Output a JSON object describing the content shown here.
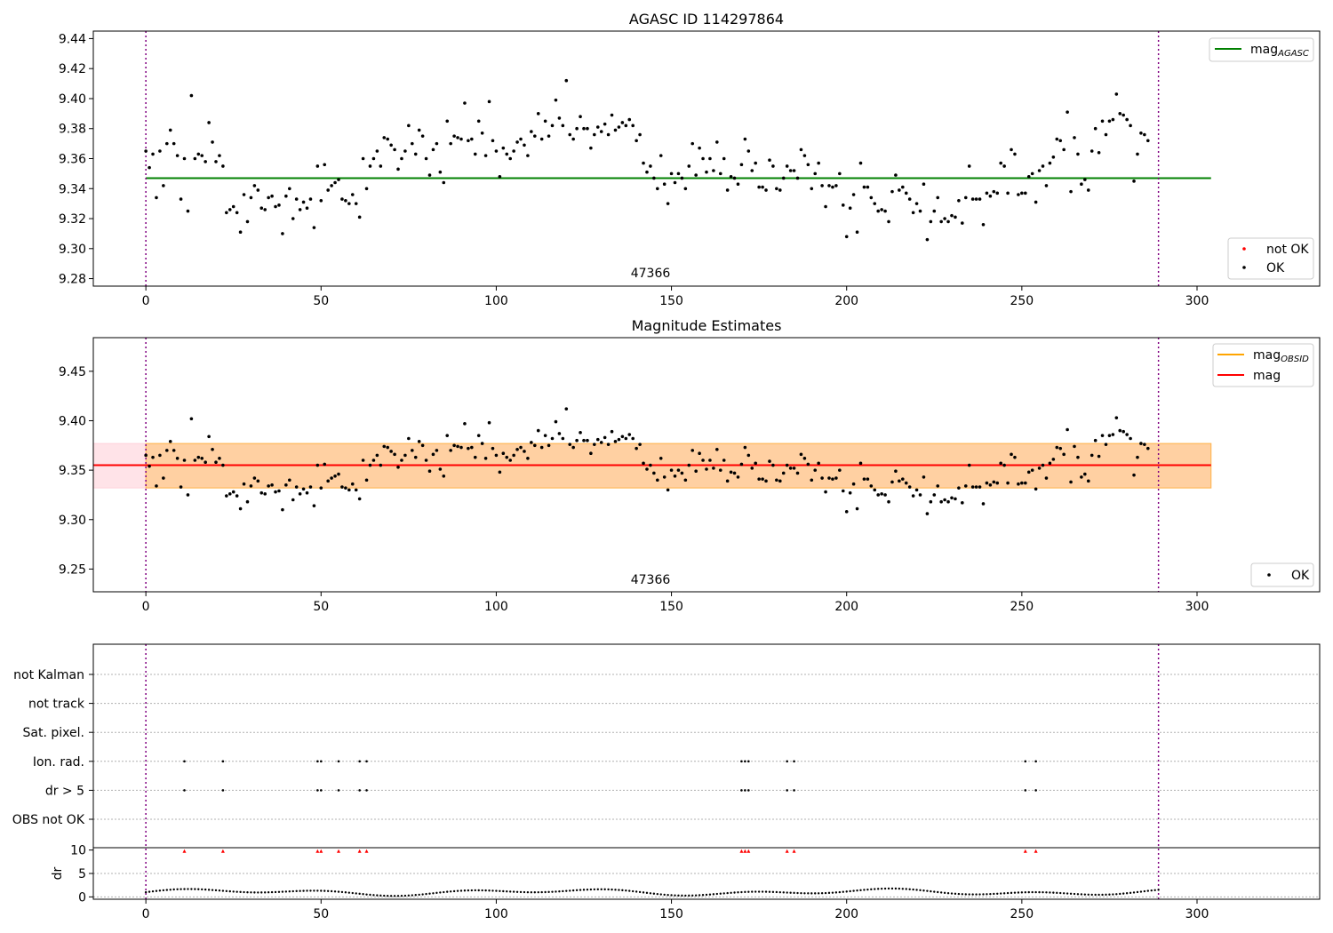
{
  "chart_data": [
    {
      "type": "scatter",
      "title": "AGASC ID 114297864",
      "annotation": "47366",
      "xlim": [
        -15,
        335
      ],
      "ylim": [
        9.275,
        9.445
      ],
      "xticks": [
        0,
        50,
        100,
        150,
        200,
        250,
        300
      ],
      "yticks": [
        9.28,
        9.3,
        9.32,
        9.34,
        9.36,
        9.38,
        9.4,
        9.42,
        9.44
      ],
      "ytick_labels": [
        "9.28",
        "9.30",
        "9.32",
        "9.34",
        "9.36",
        "9.38",
        "9.40",
        "9.42",
        "9.44"
      ],
      "vlines": [
        0,
        289
      ],
      "hline": {
        "name_main": "mag",
        "name_sub": "AGASC",
        "y": 9.347,
        "x0": 0,
        "x1": 304,
        "color": "#008000"
      },
      "series": [
        {
          "name": "not OK",
          "color": "#ff0000",
          "values": []
        },
        {
          "name": "OK",
          "color": "#000000",
          "values": [
            9.365,
            9.354,
            9.363,
            9.334,
            9.365,
            9.342,
            9.37,
            9.379,
            9.37,
            9.362,
            9.333,
            9.36,
            9.325,
            9.402,
            9.36,
            9.363,
            9.362,
            9.358,
            9.384,
            9.371,
            9.358,
            9.362,
            9.355,
            9.324,
            9.326,
            9.328,
            9.324,
            9.311,
            9.336,
            9.318,
            9.334,
            9.342,
            9.339,
            9.327,
            9.326,
            9.334,
            9.335,
            9.328,
            9.329,
            9.31,
            9.335,
            9.34,
            9.32,
            9.333,
            9.326,
            9.331,
            9.327,
            9.333,
            9.314,
            9.355,
            9.332,
            9.356,
            9.339,
            9.342,
            9.344,
            9.346,
            9.333,
            9.332,
            9.33,
            9.336,
            9.33,
            9.321,
            9.36,
            9.34,
            9.355,
            9.36,
            9.365,
            9.355,
            9.374,
            9.373,
            9.369,
            9.366,
            9.353,
            9.36,
            9.365,
            9.382,
            9.37,
            9.363,
            9.379,
            9.375,
            9.36,
            9.349,
            9.366,
            9.37,
            9.351,
            9.344,
            9.385,
            9.37,
            9.375,
            9.374,
            9.373,
            9.397,
            9.372,
            9.373,
            9.363,
            9.385,
            9.377,
            9.362,
            9.398,
            9.372,
            9.365,
            9.348,
            9.367,
            9.363,
            9.36,
            9.365,
            9.371,
            9.373,
            9.369,
            9.362,
            9.378,
            9.375,
            9.39,
            9.373,
            9.385,
            9.375,
            9.382,
            9.399,
            9.387,
            9.382,
            9.412,
            9.376,
            9.373,
            9.38,
            9.388,
            9.38,
            9.38,
            9.367,
            9.376,
            9.381,
            9.378,
            9.383,
            9.376,
            9.389,
            9.379,
            9.381,
            9.384,
            9.382,
            9.386,
            9.382,
            9.372,
            9.376,
            9.357,
            9.351,
            9.355,
            9.347,
            9.34,
            9.362,
            9.343,
            9.33,
            9.35,
            9.344,
            9.35,
            9.347,
            9.34,
            9.355,
            9.37,
            9.349,
            9.367,
            9.36,
            9.351,
            9.36,
            9.352,
            9.371,
            9.35,
            9.36,
            9.339,
            9.348,
            9.347,
            9.343,
            9.356,
            9.373,
            9.365,
            9.352,
            9.357,
            9.341,
            9.341,
            9.339,
            9.359,
            9.355,
            9.34,
            9.339,
            9.347,
            9.355,
            9.352,
            9.352,
            9.347,
            9.366,
            9.362,
            9.356,
            9.34,
            9.35,
            9.357,
            9.342,
            9.328,
            9.342,
            9.341,
            9.342,
            9.35,
            9.329,
            9.308,
            9.327,
            9.336,
            9.311,
            9.357,
            9.341,
            9.341,
            9.334,
            9.33,
            9.325,
            9.326,
            9.325,
            9.318,
            9.338,
            9.349,
            9.339,
            9.341,
            9.337,
            9.333,
            9.324,
            9.33,
            9.325,
            9.343,
            9.306,
            9.318,
            9.325,
            9.334,
            9.318,
            9.32,
            9.318,
            9.322,
            9.321,
            9.332,
            9.317,
            9.334,
            9.355,
            9.333,
            9.333,
            9.333,
            9.316,
            9.337,
            9.335,
            9.338,
            9.337,
            9.357,
            9.355,
            9.337,
            9.366,
            9.363,
            9.336,
            9.337,
            9.337,
            9.348,
            9.35,
            9.331,
            9.352,
            9.355,
            9.342,
            9.357,
            9.361,
            9.373,
            9.372,
            9.366,
            9.391,
            9.338,
            9.374,
            9.363,
            9.343,
            9.346,
            9.339,
            9.365,
            9.38,
            9.364,
            9.385,
            9.376,
            9.385,
            9.386,
            9.403,
            9.39,
            9.389,
            9.386,
            9.382,
            9.345,
            9.363,
            9.377,
            9.376,
            9.372
          ]
        }
      ]
    },
    {
      "type": "scatter",
      "title": "Magnitude Estimates",
      "annotation": "47366",
      "xlim": [
        -15,
        335
      ],
      "ylim": [
        9.227,
        9.484
      ],
      "xticks": [
        0,
        50,
        100,
        150,
        200,
        250,
        300
      ],
      "yticks": [
        9.25,
        9.3,
        9.35,
        9.4,
        9.45
      ],
      "ytick_labels": [
        "9.25",
        "9.30",
        "9.35",
        "9.40",
        "9.45"
      ],
      "vlines": [
        0,
        289
      ],
      "bands": [
        {
          "x0": -15,
          "x1": 304,
          "y0": 9.332,
          "y1": 9.377,
          "color": "#ffc0cb"
        },
        {
          "x0": 0,
          "x1": 304,
          "y0": 9.332,
          "y1": 9.377,
          "color": "#ffa500"
        }
      ],
      "lines": [
        {
          "name_main": "mag",
          "name_sub": "OBSID",
          "y": 9.355,
          "x0": -15,
          "x1": 304,
          "color": "#ffa500"
        },
        {
          "name_main": "mag",
          "name_sub": "",
          "y": 9.355,
          "x0": -15,
          "x1": 304,
          "color": "#ff0000"
        }
      ],
      "series": [
        {
          "name": "OK",
          "color": "#000000",
          "values_ref": "same as panel 1 OK series"
        }
      ]
    },
    {
      "type": "scatter",
      "title": "",
      "xlim": [
        -15,
        335
      ],
      "xticks": [
        0,
        50,
        100,
        150,
        200,
        250,
        300
      ],
      "flag_rows": [
        "not Kalman",
        "not track",
        "Sat. pixel.",
        "Ion. rad.",
        "dr > 5",
        "OBS not OK"
      ],
      "flag_points": {
        "Ion. rad.": [
          11,
          22,
          49,
          50,
          55,
          61,
          63,
          170,
          171,
          172,
          183,
          185,
          251,
          254
        ],
        "dr > 5": [
          11,
          22,
          49,
          50,
          55,
          61,
          63,
          170,
          171,
          172,
          183,
          185,
          251,
          254
        ]
      },
      "dr_ylabel": "dr",
      "dr_ylim": [
        -0.5,
        10.5
      ],
      "dr_yticks": [
        0,
        5,
        10
      ],
      "dr_ytick_labels": [
        "0",
        "5",
        "10"
      ],
      "dr_clipped_x": [
        11,
        22,
        49,
        50,
        55,
        61,
        63,
        170,
        171,
        172,
        183,
        185,
        251,
        254
      ],
      "dr_clipped_color": "#ff0000",
      "dr_note": "dr values approx 0.3-2.0, clipped at 10 (red)"
    }
  ]
}
